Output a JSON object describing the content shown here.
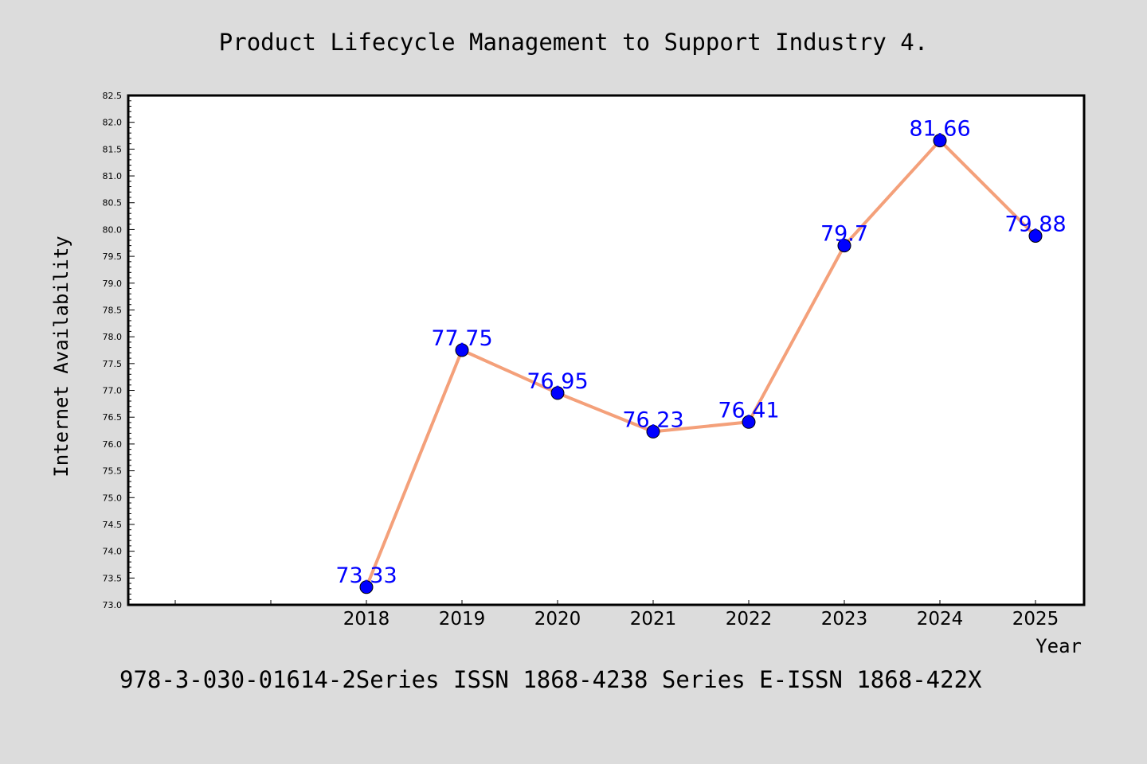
{
  "chart_data": {
    "type": "line",
    "title": "Product Lifecycle Management to Support Industry 4.",
    "xlabel": "Year",
    "ylabel": "Internet Availability",
    "footer": "978-3-030-01614-2Series ISSN 1868-4238 Series E-ISSN 1868-422X",
    "x": [
      "2018",
      "2019",
      "2020",
      "2021",
      "2022",
      "2023",
      "2024",
      "2025"
    ],
    "series": [
      {
        "values": [
          73.33,
          77.75,
          76.95,
          76.23,
          76.41,
          79.7,
          81.66,
          79.88
        ],
        "data_labels": [
          "73.33",
          "77.75",
          "76.95",
          "76.23",
          "76.41",
          "79.7",
          "81.66",
          "79.88"
        ]
      }
    ],
    "ylim": [
      73.0,
      82.5
    ],
    "ytick_step": 0.5,
    "x_slots_before_first": 2,
    "grid": false,
    "colors": {
      "line": "#f4a07a",
      "marker": "#0000ff",
      "data_label": "#0000ff",
      "background": "#dcdcdc",
      "plot_background": "#ffffff"
    }
  }
}
